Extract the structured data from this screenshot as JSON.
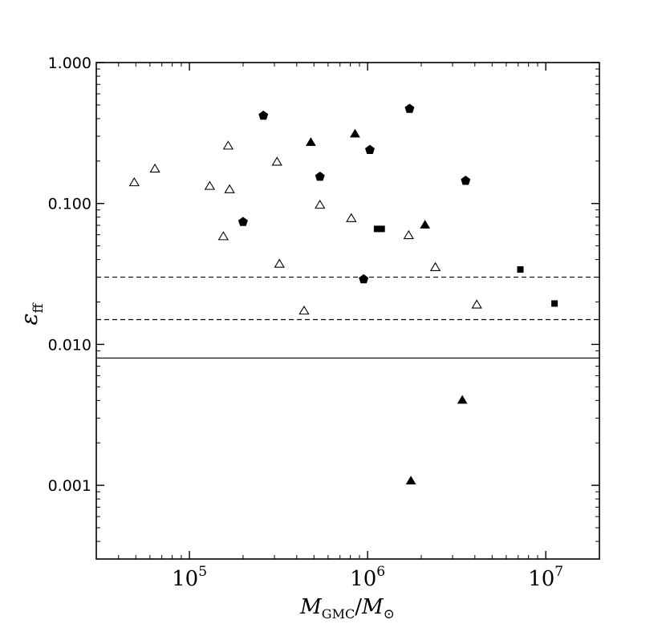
{
  "chart_data": {
    "type": "scatter",
    "xlabel": "M_GMC / M_⊙",
    "ylabel": "ε_ff",
    "xscale": "log",
    "yscale": "log",
    "xlim": [
      30000,
      20000000
    ],
    "ylim": [
      0.0003,
      1.0
    ],
    "xtick_labels": [
      {
        "value": 100000,
        "base": "10",
        "exp": "5"
      },
      {
        "value": 1000000,
        "base": "10",
        "exp": "6"
      },
      {
        "value": 10000000,
        "base": "10",
        "exp": "7"
      }
    ],
    "ytick_labels": [
      {
        "value": 0.001,
        "label": "0.001"
      },
      {
        "value": 0.01,
        "label": "0.010"
      },
      {
        "value": 0.1,
        "label": "0.100"
      },
      {
        "value": 1.0,
        "label": "1.000"
      }
    ],
    "xlabel_parts": {
      "m1": "M",
      "sub1": "GMC",
      "slash": "/",
      "m2": "M",
      "sub2": "⊙"
    },
    "ylabel_parts": {
      "sym": "ε",
      "sub": "ff"
    },
    "reference_lines": [
      {
        "y": 0.03,
        "style": "dashed"
      },
      {
        "y": 0.015,
        "style": "dashed"
      },
      {
        "y": 0.008,
        "style": "solid"
      }
    ],
    "series": [
      {
        "marker": "open-triangle",
        "points": [
          {
            "x": 49000,
            "y": 0.14
          },
          {
            "x": 64000,
            "y": 0.175
          },
          {
            "x": 130000,
            "y": 0.132
          },
          {
            "x": 155000,
            "y": 0.058
          },
          {
            "x": 165000,
            "y": 0.255
          },
          {
            "x": 168000,
            "y": 0.125
          },
          {
            "x": 310000,
            "y": 0.196
          },
          {
            "x": 320000,
            "y": 0.037
          },
          {
            "x": 440000,
            "y": 0.0172
          },
          {
            "x": 540000,
            "y": 0.097
          },
          {
            "x": 810000,
            "y": 0.078
          },
          {
            "x": 1700000,
            "y": 0.059
          },
          {
            "x": 2400000,
            "y": 0.035
          },
          {
            "x": 4100000,
            "y": 0.019
          }
        ]
      },
      {
        "marker": "filled-triangle",
        "points": [
          {
            "x": 480000,
            "y": 0.27
          },
          {
            "x": 850000,
            "y": 0.31
          },
          {
            "x": 2100000,
            "y": 0.07
          },
          {
            "x": 3400000,
            "y": 0.004
          },
          {
            "x": 1750000,
            "y": 0.00107
          }
        ]
      },
      {
        "marker": "filled-pentagon",
        "points": [
          {
            "x": 200000,
            "y": 0.074
          },
          {
            "x": 260000,
            "y": 0.42
          },
          {
            "x": 540000,
            "y": 0.155
          },
          {
            "x": 950000,
            "y": 0.029
          },
          {
            "x": 1030000,
            "y": 0.24
          },
          {
            "x": 1720000,
            "y": 0.47
          },
          {
            "x": 3550000,
            "y": 0.145
          }
        ]
      },
      {
        "marker": "filled-square",
        "points": [
          {
            "x": 1130000,
            "y": 0.066
          },
          {
            "x": 1200000,
            "y": 0.066
          },
          {
            "x": 7200000,
            "y": 0.034
          },
          {
            "x": 11200000,
            "y": 0.0195
          }
        ]
      }
    ],
    "grid": false,
    "legend": "none"
  }
}
